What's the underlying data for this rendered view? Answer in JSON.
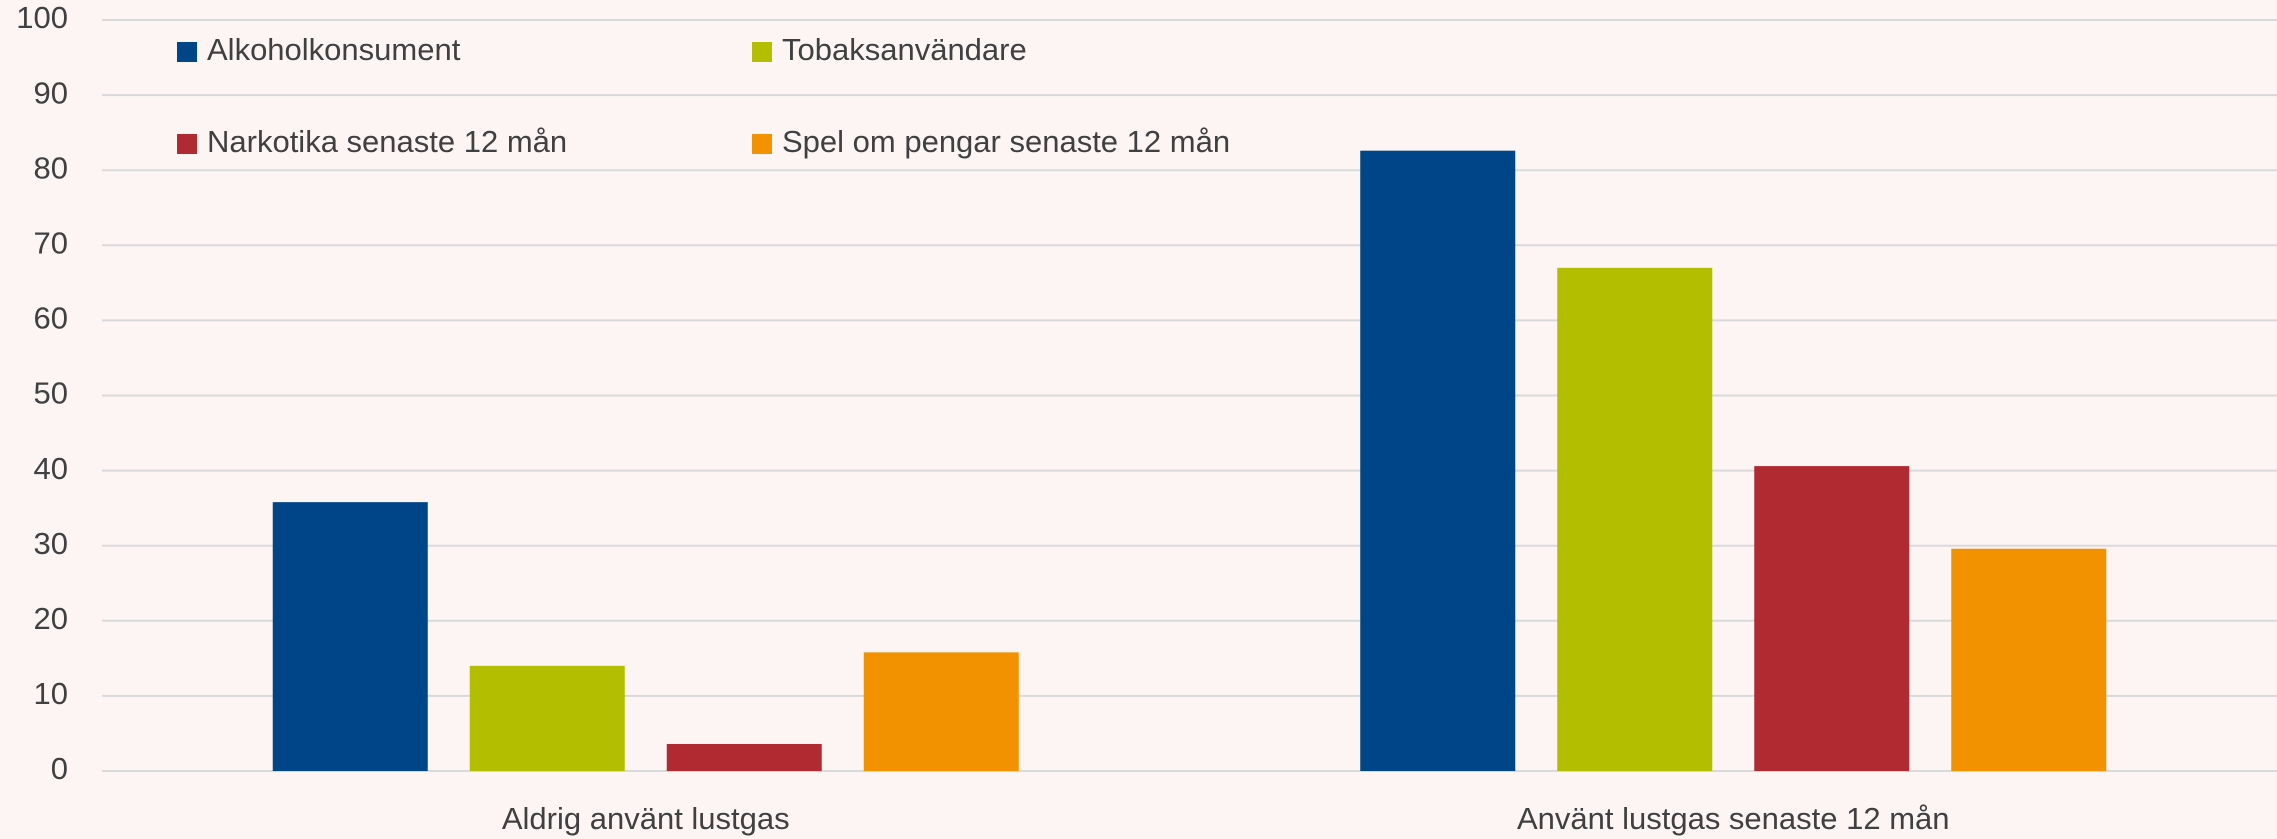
{
  "chart_data": {
    "type": "bar",
    "categories": [
      "Aldrig använt lustgas",
      "Använt lustgas senaste 12 mån"
    ],
    "series": [
      {
        "name": "Alkoholkonsument",
        "color": "#004587",
        "values": [
          35.8,
          82.6
        ]
      },
      {
        "name": "Tobaksanvändare",
        "color": "#b4be00",
        "values": [
          14,
          67
        ]
      },
      {
        "name": "Narkotika senaste 12 mån",
        "color": "#b22a31",
        "values": [
          3.6,
          40.6
        ]
      },
      {
        "name": "Spel om pengar senaste 12 mån",
        "color": "#f39200",
        "values": [
          15.8,
          29.6
        ]
      }
    ],
    "ylim": [
      0,
      100
    ],
    "yticks": [
      0,
      10,
      20,
      30,
      40,
      50,
      60,
      70,
      80,
      90,
      100
    ],
    "grid": true,
    "legend": "top-left"
  }
}
